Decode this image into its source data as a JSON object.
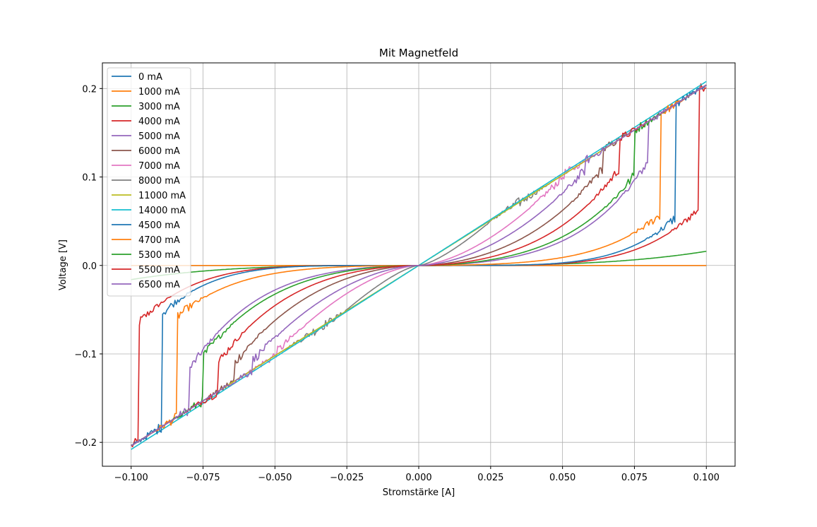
{
  "chart_data": {
    "type": "line",
    "title": "Mit Magnetfeld",
    "xlabel": "Stromstärke [A]",
    "ylabel": "Voltage [V]",
    "xlim": [
      -0.11,
      0.11
    ],
    "ylim": [
      -0.227,
      0.229
    ],
    "grid": true,
    "legend_position": "upper-left",
    "x_ticks": [
      -0.1,
      -0.075,
      -0.05,
      -0.025,
      0.0,
      0.025,
      0.05,
      0.075,
      0.1
    ],
    "x_tick_labels": [
      "−0.100",
      "−0.075",
      "−0.050",
      "−0.025",
      "0.000",
      "0.025",
      "0.050",
      "0.075",
      "0.100"
    ],
    "y_ticks": [
      -0.2,
      -0.1,
      0.0,
      0.1,
      0.2
    ],
    "y_tick_labels": [
      "−0.2",
      "−0.1",
      "0.0",
      "0.1",
      "0.2"
    ],
    "series": [
      {
        "name": "0 mA",
        "color": "#1f77b4",
        "shape": "flat",
        "params": {}
      },
      {
        "name": "1000 mA",
        "color": "#ff7f0e",
        "shape": "flat",
        "params": {}
      },
      {
        "name": "3000 mA",
        "color": "#2ca02c",
        "shape": "poly",
        "params": {
          "a": 0.016,
          "n": 3.2
        }
      },
      {
        "name": "4000 mA",
        "color": "#d62728",
        "shape": "sc",
        "params": {
          "xc": 0.0975,
          "ys": 0.065,
          "bk": 0.0
        }
      },
      {
        "name": "5000 mA",
        "color": "#9467bd",
        "shape": "sc",
        "params": {
          "xc": 0.08,
          "ys": 0.1,
          "bk": 0.3
        }
      },
      {
        "name": "6000 mA",
        "color": "#8c564b",
        "shape": "sc",
        "params": {
          "xc": 0.064,
          "ys": 0.08,
          "bk": 0.6
        }
      },
      {
        "name": "7000 mA",
        "color": "#e377c2",
        "shape": "sc",
        "params": {
          "xc": 0.05,
          "ys": 0.06,
          "bk": 0.95
        }
      },
      {
        "name": "8000 mA",
        "color": "#7f7f7f",
        "shape": "sc",
        "params": {
          "xc": 0.035,
          "ys": 0.045,
          "bk": 1.25
        }
      },
      {
        "name": "11000 mA",
        "color": "#bcbd22",
        "shape": "linear",
        "params": {
          "slope": 2.04
        }
      },
      {
        "name": "14000 mA",
        "color": "#17becf",
        "shape": "linear",
        "params": {
          "slope": 2.08
        }
      },
      {
        "name": "4500 mA",
        "color": "#1f77b4",
        "shape": "sc",
        "params": {
          "xc": 0.0895,
          "ys": 0.055,
          "bk": 0.0
        }
      },
      {
        "name": "4700 mA",
        "color": "#ff7f0e",
        "shape": "sc",
        "params": {
          "xc": 0.084,
          "ys": 0.045,
          "bk": 0.1
        }
      },
      {
        "name": "5300 mA",
        "color": "#2ca02c",
        "shape": "sc",
        "params": {
          "xc": 0.075,
          "ys": 0.075,
          "bk": 0.35
        }
      },
      {
        "name": "5500 mA",
        "color": "#d62728",
        "shape": "sc",
        "params": {
          "xc": 0.07,
          "ys": 0.085,
          "bk": 0.45
        }
      },
      {
        "name": "6500 mA",
        "color": "#9467bd",
        "shape": "sc",
        "params": {
          "xc": 0.058,
          "ys": 0.07,
          "bk": 0.8
        }
      }
    ]
  }
}
